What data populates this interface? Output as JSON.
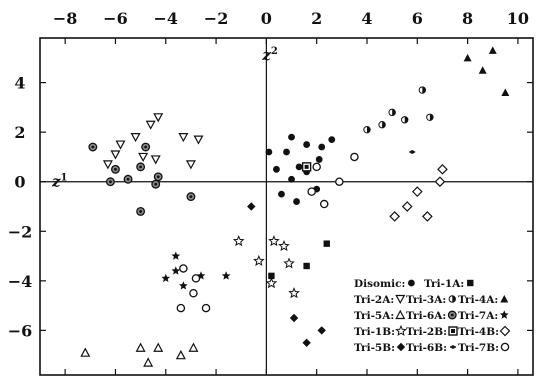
{
  "chart_data": {
    "type": "scatter",
    "title": "",
    "xlabel": "z1",
    "ylabel": "z2",
    "xlabel_parts": {
      "base": "z",
      "sup": "1"
    },
    "ylabel_parts": {
      "base": "z",
      "sup": "2"
    },
    "xlim": [
      -9,
      10.6
    ],
    "ylim": [
      -7.8,
      5.8
    ],
    "x_ticks": [
      -8,
      -6,
      -4,
      -2,
      0,
      2,
      4,
      6,
      8,
      10
    ],
    "y_ticks": [
      4,
      2,
      0,
      -2,
      -4,
      -6
    ],
    "x_ticks_position": "top",
    "grid": false,
    "legend_position": "bottom-right",
    "series": [
      {
        "name": "Disomic",
        "marker": "filled-circle",
        "points": [
          [
            0.1,
            1.2
          ],
          [
            1.0,
            1.8
          ],
          [
            1.6,
            1.5
          ],
          [
            2.2,
            1.4
          ],
          [
            2.6,
            1.7
          ],
          [
            0.8,
            1.2
          ],
          [
            1.3,
            0.6
          ],
          [
            2.1,
            0.9
          ],
          [
            0.4,
            0.5
          ],
          [
            1.0,
            0.1
          ],
          [
            1.6,
            0.4
          ],
          [
            0.6,
            -0.5
          ],
          [
            2.0,
            -0.3
          ],
          [
            1.2,
            -0.8
          ]
        ]
      },
      {
        "name": "Tri-1A",
        "marker": "filled-square",
        "points": [
          [
            1.6,
            -3.4
          ],
          [
            2.4,
            -2.5
          ],
          [
            0.2,
            -3.8
          ]
        ]
      },
      {
        "name": "Tri-2A",
        "marker": "open-triangle-down",
        "points": [
          [
            -6.3,
            0.7
          ],
          [
            -5.8,
            1.5
          ],
          [
            -5.2,
            1.8
          ],
          [
            -4.6,
            2.3
          ],
          [
            -4.3,
            2.6
          ],
          [
            -4.9,
            1.0
          ],
          [
            -3.3,
            1.8
          ],
          [
            -2.7,
            1.7
          ],
          [
            -3.0,
            0.7
          ],
          [
            -4.4,
            0.9
          ],
          [
            -6.0,
            1.1
          ]
        ]
      },
      {
        "name": "Tri-3A",
        "marker": "half-circle",
        "points": [
          [
            4.0,
            2.1
          ],
          [
            4.6,
            2.3
          ],
          [
            5.0,
            2.8
          ],
          [
            5.5,
            2.5
          ],
          [
            6.2,
            3.7
          ],
          [
            6.5,
            2.6
          ]
        ]
      },
      {
        "name": "Tri-4A",
        "marker": "filled-triangle",
        "points": [
          [
            8.0,
            5.0
          ],
          [
            8.6,
            4.5
          ],
          [
            9.0,
            5.3
          ],
          [
            9.5,
            3.6
          ]
        ]
      },
      {
        "name": "Tri-5A",
        "marker": "open-triangle",
        "points": [
          [
            -7.2,
            -6.9
          ],
          [
            -5.0,
            -6.7
          ],
          [
            -4.7,
            -7.3
          ],
          [
            -4.3,
            -6.7
          ],
          [
            -3.4,
            -7.0
          ],
          [
            -2.9,
            -6.7
          ]
        ]
      },
      {
        "name": "Tri-6A",
        "marker": "hatched-circle",
        "points": [
          [
            -6.9,
            1.4
          ],
          [
            -6.0,
            0.5
          ],
          [
            -5.5,
            0.1
          ],
          [
            -5.0,
            0.6
          ],
          [
            -4.8,
            1.4
          ],
          [
            -4.4,
            -0.1
          ],
          [
            -5.0,
            -1.2
          ],
          [
            -3.0,
            -0.6
          ],
          [
            -6.2,
            0.0
          ],
          [
            -4.3,
            0.2
          ]
        ]
      },
      {
        "name": "Tri-7A",
        "marker": "filled-star",
        "points": [
          [
            -4.0,
            -3.9
          ],
          [
            -3.6,
            -3.0
          ],
          [
            -3.6,
            -3.6
          ],
          [
            -3.3,
            -4.2
          ],
          [
            -2.6,
            -3.8
          ],
          [
            -1.6,
            -3.8
          ]
        ]
      },
      {
        "name": "Tri-1B",
        "marker": "open-star",
        "points": [
          [
            -1.1,
            -2.4
          ],
          [
            -0.3,
            -3.2
          ],
          [
            0.3,
            -2.4
          ],
          [
            0.7,
            -2.6
          ],
          [
            0.9,
            -3.3
          ],
          [
            1.1,
            -4.5
          ],
          [
            0.2,
            -4.1
          ]
        ]
      },
      {
        "name": "Tri-2B",
        "marker": "boxed-square",
        "points": [
          [
            1.6,
            0.6
          ]
        ]
      },
      {
        "name": "Tri-4B",
        "marker": "open-diamond",
        "points": [
          [
            5.1,
            -1.4
          ],
          [
            5.6,
            -1.0
          ],
          [
            6.0,
            -0.4
          ],
          [
            6.4,
            -1.4
          ],
          [
            6.9,
            0.0
          ],
          [
            7.0,
            0.5
          ]
        ]
      },
      {
        "name": "Tri-5B",
        "marker": "filled-diamond",
        "points": [
          [
            -0.6,
            -1.0
          ],
          [
            1.1,
            -5.5
          ],
          [
            2.2,
            -6.0
          ],
          [
            1.6,
            -6.5
          ]
        ]
      },
      {
        "name": "Tri-6B",
        "marker": "dotted-dash",
        "points": [
          [
            5.8,
            1.2
          ]
        ]
      },
      {
        "name": "Tri-7B",
        "marker": "open-circle",
        "points": [
          [
            3.5,
            1.0
          ],
          [
            2.9,
            0.0
          ],
          [
            2.0,
            0.6
          ],
          [
            1.8,
            -0.4
          ],
          [
            2.3,
            -0.9
          ],
          [
            -3.3,
            -3.5
          ],
          [
            -2.9,
            -4.5
          ],
          [
            -2.8,
            -3.9
          ],
          [
            -2.4,
            -5.1
          ],
          [
            -3.4,
            -5.1
          ]
        ]
      }
    ]
  },
  "legend_rows": [
    [
      {
        "label": "Disomic:",
        "marker": "filled-circle"
      },
      {
        "label": "Tri-1A:",
        "marker": "filled-square"
      }
    ],
    [
      {
        "label": "Tri-2A:",
        "marker": "open-triangle-down"
      },
      {
        "label": "Tri-3A:",
        "marker": "half-circle"
      },
      {
        "label": "Tri-4A:",
        "marker": "filled-triangle"
      }
    ],
    [
      {
        "label": "Tri-5A:",
        "marker": "open-triangle"
      },
      {
        "label": "Tri-6A:",
        "marker": "hatched-circle"
      },
      {
        "label": "Tri-7A:",
        "marker": "filled-star"
      }
    ],
    [
      {
        "label": "Tri-1B:",
        "marker": "open-star"
      },
      {
        "label": "Tri-2B:",
        "marker": "boxed-square"
      },
      {
        "label": "Tri-4B:",
        "marker": "open-diamond"
      }
    ],
    [
      {
        "label": "Tri-5B:",
        "marker": "filled-diamond"
      },
      {
        "label": "Tri-6B:",
        "marker": "dotted-dash"
      },
      {
        "label": "Tri-7B:",
        "marker": "open-circle"
      }
    ]
  ]
}
